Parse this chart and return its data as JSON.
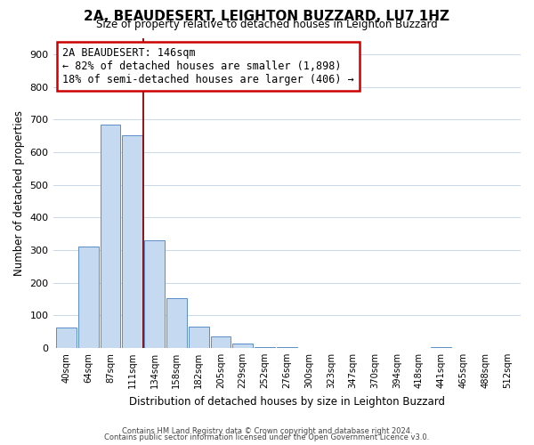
{
  "title": "2A, BEAUDESERT, LEIGHTON BUZZARD, LU7 1HZ",
  "subtitle": "Size of property relative to detached houses in Leighton Buzzard",
  "xlabel": "Distribution of detached houses by size in Leighton Buzzard",
  "ylabel": "Number of detached properties",
  "bin_labels": [
    "40sqm",
    "64sqm",
    "87sqm",
    "111sqm",
    "134sqm",
    "158sqm",
    "182sqm",
    "205sqm",
    "229sqm",
    "252sqm",
    "276sqm",
    "300sqm",
    "323sqm",
    "347sqm",
    "370sqm",
    "394sqm",
    "418sqm",
    "441sqm",
    "465sqm",
    "488sqm",
    "512sqm"
  ],
  "bar_values": [
    63,
    310,
    685,
    652,
    330,
    153,
    65,
    35,
    14,
    3,
    3,
    0,
    0,
    0,
    0,
    0,
    0,
    3,
    0,
    0,
    0
  ],
  "bar_color": "#c5d9f1",
  "bar_edge_color": "#5b8dc8",
  "vline_x": 3.5,
  "vline_color": "#8b0000",
  "ylim": [
    0,
    950
  ],
  "yticks": [
    0,
    100,
    200,
    300,
    400,
    500,
    600,
    700,
    800,
    900
  ],
  "annotation_title": "2A BEAUDESERT: 146sqm",
  "annotation_line1": "← 82% of detached houses are smaller (1,898)",
  "annotation_line2": "18% of semi-detached houses are larger (406) →",
  "footer1": "Contains HM Land Registry data © Crown copyright and database right 2024.",
  "footer2": "Contains public sector information licensed under the Open Government Licence v3.0.",
  "background_color": "#ffffff",
  "grid_color": "#c8d8e8"
}
